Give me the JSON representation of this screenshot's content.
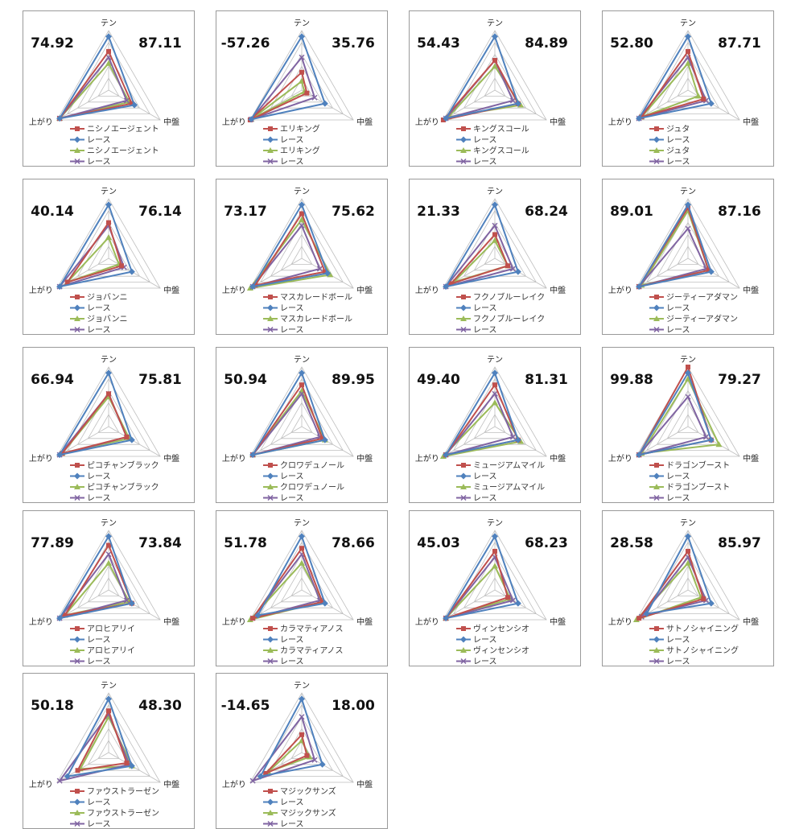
{
  "axes": [
    "テン",
    "中盤",
    "上がり"
  ],
  "colors": {
    "red": "#c0504d",
    "blue": "#4f81bd",
    "green": "#9bbb59",
    "purple": "#8064a2",
    "grid": "#bfbfbf"
  },
  "chart_data": [
    {
      "type": "radar",
      "left_value": "74.92",
      "right_value": "87.11",
      "axes": [
        "テン",
        "中盤",
        "上がり"
      ],
      "series": [
        {
          "name": "ニシノエージェント",
          "color": "red",
          "marker": "square",
          "values": [
            0.65,
            0.45,
            0.95
          ]
        },
        {
          "name": "レース",
          "color": "blue",
          "marker": "diamond",
          "values": [
            0.9,
            0.5,
            0.95
          ]
        },
        {
          "name": "ニシノエージェント",
          "color": "green",
          "marker": "triangle",
          "values": [
            0.45,
            0.4,
            0.95
          ]
        },
        {
          "name": "レース",
          "color": "purple",
          "marker": "x",
          "values": [
            0.55,
            0.35,
            0.95
          ]
        }
      ]
    },
    {
      "type": "radar",
      "left_value": "-57.26",
      "right_value": "35.76",
      "axes": [
        "テン",
        "中盤",
        "上がり"
      ],
      "series": [
        {
          "name": "エリキング",
          "color": "red",
          "marker": "square",
          "values": [
            0.3,
            0.1,
            1.0
          ]
        },
        {
          "name": "レース",
          "color": "blue",
          "marker": "diamond",
          "values": [
            0.9,
            0.45,
            0.98
          ]
        },
        {
          "name": "エリキング",
          "color": "green",
          "marker": "triangle",
          "values": [
            0.15,
            0.05,
            0.98
          ]
        },
        {
          "name": "レース",
          "color": "purple",
          "marker": "x",
          "values": [
            0.55,
            0.25,
            0.98
          ]
        }
      ]
    },
    {
      "type": "radar",
      "left_value": "54.43",
      "right_value": "84.89",
      "axes": [
        "テン",
        "中盤",
        "上がり"
      ],
      "series": [
        {
          "name": "キングスコール",
          "color": "red",
          "marker": "square",
          "values": [
            0.5,
            0.45,
            1.0
          ]
        },
        {
          "name": "レース",
          "color": "blue",
          "marker": "diamond",
          "values": [
            0.9,
            0.45,
            0.95
          ]
        },
        {
          "name": "キングスコール",
          "color": "green",
          "marker": "triangle",
          "values": [
            0.4,
            0.5,
            0.9
          ]
        },
        {
          "name": "レース",
          "color": "purple",
          "marker": "x",
          "values": [
            0.5,
            0.35,
            0.95
          ]
        }
      ]
    },
    {
      "type": "radar",
      "left_value": "52.80",
      "right_value": "87.71",
      "axes": [
        "テン",
        "中盤",
        "上がり"
      ],
      "series": [
        {
          "name": "ジュタ",
          "color": "red",
          "marker": "square",
          "values": [
            0.65,
            0.3,
            0.9
          ]
        },
        {
          "name": "レース",
          "color": "blue",
          "marker": "diamond",
          "values": [
            0.9,
            0.45,
            0.95
          ]
        },
        {
          "name": "ジュタ",
          "color": "green",
          "marker": "triangle",
          "values": [
            0.45,
            0.2,
            0.9
          ]
        },
        {
          "name": "レース",
          "color": "purple",
          "marker": "x",
          "values": [
            0.55,
            0.35,
            0.95
          ]
        }
      ]
    },
    {
      "type": "radar",
      "left_value": "40.14",
      "right_value": "76.14",
      "axes": [
        "テン",
        "中盤",
        "上がり"
      ],
      "series": [
        {
          "name": "ジョバンニ",
          "color": "red",
          "marker": "square",
          "values": [
            0.6,
            0.25,
            0.8
          ]
        },
        {
          "name": "レース",
          "color": "blue",
          "marker": "diamond",
          "values": [
            0.9,
            0.45,
            0.95
          ]
        },
        {
          "name": "ジョバンニ",
          "color": "green",
          "marker": "triangle",
          "values": [
            0.35,
            0.2,
            0.8
          ]
        },
        {
          "name": "レース",
          "color": "purple",
          "marker": "x",
          "values": [
            0.55,
            0.3,
            0.95
          ]
        }
      ]
    },
    {
      "type": "radar",
      "left_value": "73.17",
      "right_value": "75.62",
      "axes": [
        "テン",
        "中盤",
        "上がり"
      ],
      "series": [
        {
          "name": "マスカレードボール",
          "color": "red",
          "marker": "square",
          "values": [
            0.75,
            0.45,
            0.9
          ]
        },
        {
          "name": "レース",
          "color": "blue",
          "marker": "diamond",
          "values": [
            0.9,
            0.5,
            0.95
          ]
        },
        {
          "name": "マスカレードボール",
          "color": "green",
          "marker": "triangle",
          "values": [
            0.65,
            0.55,
            1.0
          ]
        },
        {
          "name": "レース",
          "color": "purple",
          "marker": "x",
          "values": [
            0.55,
            0.35,
            0.95
          ]
        }
      ]
    },
    {
      "type": "radar",
      "left_value": "21.33",
      "right_value": "68.24",
      "axes": [
        "テン",
        "中盤",
        "上がり"
      ],
      "series": [
        {
          "name": "フクノブルーレイク",
          "color": "red",
          "marker": "square",
          "values": [
            0.4,
            0.25,
            0.85
          ]
        },
        {
          "name": "レース",
          "color": "blue",
          "marker": "diamond",
          "values": [
            0.9,
            0.45,
            0.95
          ]
        },
        {
          "name": "フクノブルーレイク",
          "color": "green",
          "marker": "triangle",
          "values": [
            0.3,
            0.25,
            0.8
          ]
        },
        {
          "name": "レース",
          "color": "purple",
          "marker": "x",
          "values": [
            0.55,
            0.35,
            0.95
          ]
        }
      ]
    },
    {
      "type": "radar",
      "left_value": "89.01",
      "right_value": "87.16",
      "axes": [
        "テン",
        "中盤",
        "上がり"
      ],
      "series": [
        {
          "name": "ジーティーアダマン",
          "color": "red",
          "marker": "square",
          "values": [
            0.85,
            0.4,
            0.95
          ]
        },
        {
          "name": "レース",
          "color": "blue",
          "marker": "diamond",
          "values": [
            0.9,
            0.45,
            0.95
          ]
        },
        {
          "name": "ジーティーアダマン",
          "color": "green",
          "marker": "triangle",
          "values": [
            0.8,
            0.4,
            0.9
          ]
        },
        {
          "name": "レース",
          "color": "purple",
          "marker": "x",
          "values": [
            0.5,
            0.35,
            0.95
          ]
        }
      ]
    },
    {
      "type": "radar",
      "left_value": "66.94",
      "right_value": "75.81",
      "axes": [
        "テン",
        "中盤",
        "上がり"
      ],
      "series": [
        {
          "name": "ピコチャンブラック",
          "color": "red",
          "marker": "square",
          "values": [
            0.55,
            0.35,
            0.9
          ]
        },
        {
          "name": "レース",
          "color": "blue",
          "marker": "diamond",
          "values": [
            0.9,
            0.45,
            0.95
          ]
        },
        {
          "name": "ピコチャンブラック",
          "color": "green",
          "marker": "triangle",
          "values": [
            0.5,
            0.4,
            0.9
          ]
        },
        {
          "name": "レース",
          "color": "purple",
          "marker": "x",
          "values": [
            0.55,
            0.35,
            0.95
          ]
        }
      ]
    },
    {
      "type": "radar",
      "left_value": "50.94",
      "right_value": "89.95",
      "axes": [
        "テン",
        "中盤",
        "上がり"
      ],
      "series": [
        {
          "name": "クロワデュノール",
          "color": "red",
          "marker": "square",
          "values": [
            0.7,
            0.4,
            0.95
          ]
        },
        {
          "name": "レース",
          "color": "blue",
          "marker": "diamond",
          "values": [
            0.9,
            0.45,
            0.95
          ]
        },
        {
          "name": "クロワデュノール",
          "color": "green",
          "marker": "triangle",
          "values": [
            0.6,
            0.45,
            0.95
          ]
        },
        {
          "name": "レース",
          "color": "purple",
          "marker": "x",
          "values": [
            0.55,
            0.35,
            0.95
          ]
        }
      ]
    },
    {
      "type": "radar",
      "left_value": "49.40",
      "right_value": "81.31",
      "axes": [
        "テン",
        "中盤",
        "上がり"
      ],
      "series": [
        {
          "name": "ミュージアムマイル",
          "color": "red",
          "marker": "square",
          "values": [
            0.7,
            0.45,
            0.95
          ]
        },
        {
          "name": "レース",
          "color": "blue",
          "marker": "diamond",
          "values": [
            0.9,
            0.45,
            0.95
          ]
        },
        {
          "name": "ミュージアムマイル",
          "color": "green",
          "marker": "triangle",
          "values": [
            0.4,
            0.5,
            1.0
          ]
        },
        {
          "name": "レース",
          "color": "purple",
          "marker": "x",
          "values": [
            0.55,
            0.35,
            0.95
          ]
        }
      ]
    },
    {
      "type": "radar",
      "left_value": "99.88",
      "right_value": "79.27",
      "axes": [
        "テン",
        "中盤",
        "上がり"
      ],
      "series": [
        {
          "name": "ドラゴンブースト",
          "color": "red",
          "marker": "square",
          "values": [
            1.0,
            0.45,
            0.95
          ]
        },
        {
          "name": "レース",
          "color": "blue",
          "marker": "diamond",
          "values": [
            0.9,
            0.45,
            0.95
          ]
        },
        {
          "name": "ドラゴンブースト",
          "color": "green",
          "marker": "triangle",
          "values": [
            0.8,
            0.6,
            0.9
          ]
        },
        {
          "name": "レース",
          "color": "purple",
          "marker": "x",
          "values": [
            0.5,
            0.35,
            0.95
          ]
        }
      ]
    },
    {
      "type": "radar",
      "left_value": "77.89",
      "right_value": "73.84",
      "axes": [
        "テン",
        "中盤",
        "上がり"
      ],
      "series": [
        {
          "name": "アロヒアリイ",
          "color": "red",
          "marker": "square",
          "values": [
            0.75,
            0.45,
            0.85
          ]
        },
        {
          "name": "レース",
          "color": "blue",
          "marker": "diamond",
          "values": [
            0.9,
            0.45,
            0.95
          ]
        },
        {
          "name": "アロヒアリイ",
          "color": "green",
          "marker": "triangle",
          "values": [
            0.45,
            0.4,
            0.85
          ]
        },
        {
          "name": "レース",
          "color": "purple",
          "marker": "x",
          "values": [
            0.6,
            0.35,
            0.95
          ]
        }
      ]
    },
    {
      "type": "radar",
      "left_value": "51.78",
      "right_value": "78.66",
      "axes": [
        "テン",
        "中盤",
        "上がり"
      ],
      "series": [
        {
          "name": "カラマティアノス",
          "color": "red",
          "marker": "square",
          "values": [
            0.7,
            0.4,
            0.95
          ]
        },
        {
          "name": "レース",
          "color": "blue",
          "marker": "diamond",
          "values": [
            0.9,
            0.45,
            0.85
          ]
        },
        {
          "name": "カラマティアノス",
          "color": "green",
          "marker": "triangle",
          "values": [
            0.45,
            0.4,
            1.0
          ]
        },
        {
          "name": "レース",
          "color": "purple",
          "marker": "x",
          "values": [
            0.6,
            0.35,
            0.95
          ]
        }
      ]
    },
    {
      "type": "radar",
      "left_value": "45.03",
      "right_value": "68.23",
      "axes": [
        "テン",
        "中盤",
        "上がり"
      ],
      "series": [
        {
          "name": "ヴィンセンシオ",
          "color": "red",
          "marker": "square",
          "values": [
            0.65,
            0.25,
            0.95
          ]
        },
        {
          "name": "レース",
          "color": "blue",
          "marker": "diamond",
          "values": [
            0.9,
            0.45,
            0.95
          ]
        },
        {
          "name": "ヴィンセンシオ",
          "color": "green",
          "marker": "triangle",
          "values": [
            0.4,
            0.3,
            0.95
          ]
        },
        {
          "name": "レース",
          "color": "purple",
          "marker": "x",
          "values": [
            0.55,
            0.35,
            0.95
          ]
        }
      ]
    },
    {
      "type": "radar",
      "left_value": "28.58",
      "right_value": "85.97",
      "axes": [
        "テン",
        "中盤",
        "上がり"
      ],
      "series": [
        {
          "name": "サトノシャイニング",
          "color": "red",
          "marker": "square",
          "values": [
            0.65,
            0.3,
            0.95
          ]
        },
        {
          "name": "レース",
          "color": "blue",
          "marker": "diamond",
          "values": [
            0.9,
            0.45,
            0.8
          ]
        },
        {
          "name": "サトノシャイニング",
          "color": "green",
          "marker": "triangle",
          "values": [
            0.45,
            0.25,
            1.0
          ]
        },
        {
          "name": "レース",
          "color": "purple",
          "marker": "x",
          "values": [
            0.55,
            0.35,
            0.9
          ]
        }
      ]
    },
    {
      "type": "radar",
      "left_value": "50.18",
      "right_value": "48.30",
      "axes": [
        "テン",
        "中盤",
        "上がり"
      ],
      "series": [
        {
          "name": "ファウストラーゼン",
          "color": "red",
          "marker": "square",
          "values": [
            0.7,
            0.35,
            0.6
          ]
        },
        {
          "name": "レース",
          "color": "blue",
          "marker": "diamond",
          "values": [
            0.9,
            0.45,
            0.8
          ]
        },
        {
          "name": "ファウストラーゼン",
          "color": "green",
          "marker": "triangle",
          "values": [
            0.6,
            0.45,
            0.55
          ]
        },
        {
          "name": "レース",
          "color": "purple",
          "marker": "x",
          "values": [
            0.65,
            0.4,
            0.95
          ]
        }
      ]
    },
    {
      "type": "radar",
      "left_value": "-14.65",
      "right_value": "18.00",
      "axes": [
        "テン",
        "中盤",
        "上がり"
      ],
      "series": [
        {
          "name": "マジックサンズ",
          "color": "red",
          "marker": "square",
          "values": [
            0.3,
            0.1,
            0.7
          ]
        },
        {
          "name": "レース",
          "color": "blue",
          "marker": "diamond",
          "values": [
            0.9,
            0.4,
            0.8
          ]
        },
        {
          "name": "マジックサンズ",
          "color": "green",
          "marker": "triangle",
          "values": [
            0.2,
            0.15,
            0.65
          ]
        },
        {
          "name": "レース",
          "color": "purple",
          "marker": "x",
          "values": [
            0.6,
            0.25,
            0.95
          ]
        }
      ]
    }
  ]
}
